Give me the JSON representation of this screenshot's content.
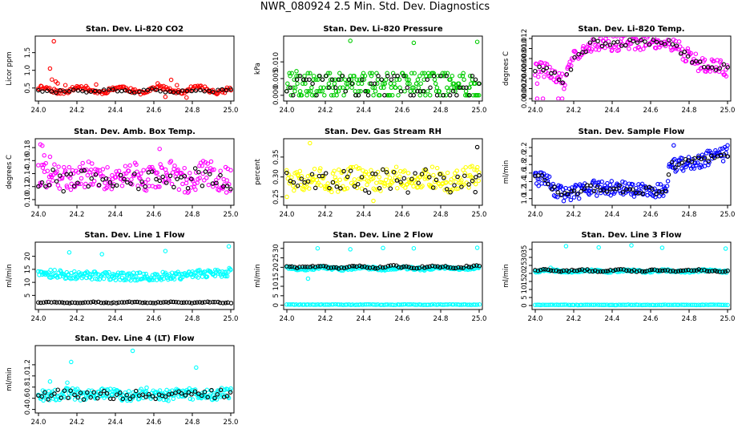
{
  "page_title": "NWR_080924  2.5 Min. Std. Dev. Diagnostics",
  "chart_data": [
    {
      "id": "co2",
      "type": "scatter",
      "title": "Stan. Dev. Li-820 CO2",
      "ylabel": "Licor ppm",
      "color": "#ff0000",
      "xlim": [
        24.0,
        25.0
      ],
      "xticks": [
        24.0,
        24.2,
        24.4,
        24.6,
        24.8,
        25.0
      ],
      "ylim": [
        0.2,
        1.9
      ],
      "yticks": [
        0.5,
        1.0,
        1.5
      ],
      "series": [
        {
          "name": "primary",
          "color": "#ff0000",
          "gen": {
            "kind": "noise",
            "n": 170,
            "base": 0.45,
            "amp": 0.07,
            "jitter": 0.06,
            "seed": 11
          },
          "extra": [
            [
              24.08,
              1.82
            ],
            [
              24.06,
              1.05
            ],
            [
              24.07,
              0.74
            ],
            [
              24.09,
              0.68
            ],
            [
              24.1,
              0.63
            ],
            [
              24.14,
              0.58
            ],
            [
              24.2,
              0.55
            ],
            [
              24.3,
              0.6
            ],
            [
              24.62,
              0.63
            ],
            [
              24.69,
              0.73
            ],
            [
              24.72,
              0.58
            ],
            [
              24.66,
              0.25
            ],
            [
              24.77,
              0.23
            ]
          ]
        },
        {
          "name": "secondary",
          "color": "#000000",
          "gen": {
            "kind": "noise",
            "n": 45,
            "base": 0.42,
            "amp": 0.03,
            "jitter": 0.04,
            "seed": 12
          }
        }
      ]
    },
    {
      "id": "pressure",
      "type": "scatter",
      "title": "Stan. Dev. Li-820 Pressure",
      "ylabel": "kPa",
      "color": "#00cc00",
      "xlim": [
        24.0,
        25.0
      ],
      "xticks": [
        24.0,
        24.2,
        24.4,
        24.6,
        24.8,
        25.0
      ],
      "ylim": [
        -0.001,
        0.017
      ],
      "yticks": [
        0.0,
        0.005,
        0.01
      ],
      "series": [
        {
          "name": "primary",
          "color": "#00cc00",
          "gen": {
            "kind": "levels",
            "n": 220,
            "levels": [
              0,
              0.0012,
              0.0023,
              0.0035,
              0.0047,
              0.0058,
              0.0066
            ],
            "seed": 21
          },
          "extra": [
            [
              24.33,
              0.0163
            ],
            [
              24.66,
              0.0157
            ],
            [
              24.99,
              0.016
            ],
            [
              24.05,
              0.0072
            ]
          ]
        },
        {
          "name": "secondary",
          "color": "#000000",
          "gen": {
            "kind": "levels",
            "n": 60,
            "levels": [
              0,
              0.0012,
              0.0023,
              0.0035,
              0.0047,
              0.0058
            ],
            "seed": 22
          }
        }
      ]
    },
    {
      "id": "temp",
      "type": "scatter",
      "title": "Stan. Dev. Li-820 Temp.",
      "ylabel": "degrees C",
      "color": "#ff00ff",
      "xlim": [
        24.0,
        25.0
      ],
      "xticks": [
        24.0,
        24.2,
        24.4,
        24.6,
        24.8,
        25.0
      ],
      "ylim": [
        0.0,
        0.012
      ],
      "yticks": [
        0.0,
        0.002,
        0.004,
        0.006,
        0.008,
        0.01,
        0.012
      ],
      "series": [
        {
          "name": "primary",
          "color": "#ff00ff",
          "gen": {
            "kind": "curve",
            "n": 200,
            "pts": [
              [
                24.0,
                0.006
              ],
              [
                24.1,
                0.005
              ],
              [
                24.15,
                0.003
              ],
              [
                24.2,
                0.008
              ],
              [
                24.3,
                0.011
              ],
              [
                24.5,
                0.0112
              ],
              [
                24.7,
                0.0115
              ],
              [
                24.78,
                0.009
              ],
              [
                24.85,
                0.007
              ],
              [
                25.0,
                0.006
              ]
            ],
            "jitter": 0.0016,
            "seed": 31
          },
          "extra": [
            [
              24.01,
              0.0
            ],
            [
              24.04,
              0.0
            ],
            [
              24.12,
              0.0
            ],
            [
              24.14,
              0.0
            ],
            [
              24.01,
              0.003
            ]
          ]
        },
        {
          "name": "secondary",
          "color": "#000000",
          "gen": {
            "kind": "curve",
            "n": 50,
            "pts": [
              [
                24.0,
                0.006
              ],
              [
                24.1,
                0.005
              ],
              [
                24.15,
                0.003
              ],
              [
                24.2,
                0.008
              ],
              [
                24.3,
                0.011
              ],
              [
                24.5,
                0.0112
              ],
              [
                24.7,
                0.0115
              ],
              [
                24.78,
                0.009
              ],
              [
                24.85,
                0.007
              ],
              [
                25.0,
                0.006
              ]
            ],
            "jitter": 0.0008,
            "seed": 32
          }
        }
      ]
    },
    {
      "id": "boxtemp",
      "type": "scatter",
      "title": "Stan. Dev. Amb. Box Temp.",
      "ylabel": "degrees C",
      "color": "#ff00ff",
      "xlim": [
        24.0,
        25.0
      ],
      "xticks": [
        24.0,
        24.2,
        24.4,
        24.6,
        24.8,
        25.0
      ],
      "ylim": [
        0.095,
        0.19
      ],
      "yticks": [
        0.1,
        0.12,
        0.14,
        0.16,
        0.18
      ],
      "series": [
        {
          "name": "primary",
          "color": "#ff00ff",
          "gen": {
            "kind": "noise",
            "n": 220,
            "base": 0.135,
            "amp": 0.005,
            "jitter": 0.02,
            "seed": 41
          },
          "extra": [
            [
              24.01,
              0.185
            ],
            [
              24.02,
              0.183
            ],
            [
              24.03,
              0.168
            ],
            [
              24.63,
              0.178
            ],
            [
              24.06,
              0.166
            ]
          ]
        },
        {
          "name": "secondary",
          "color": "#000000",
          "gen": {
            "kind": "noise",
            "n": 55,
            "base": 0.13,
            "amp": 0.005,
            "jitter": 0.015,
            "seed": 42
          }
        }
      ]
    },
    {
      "id": "rh",
      "type": "scatter",
      "title": "Stan. Dev. Gas Stream RH",
      "ylabel": "percent",
      "color": "#ffff00",
      "xlim": [
        24.0,
        25.0
      ],
      "xticks": [
        24.0,
        24.2,
        24.4,
        24.6,
        24.8,
        25.0
      ],
      "ylim": [
        0.235,
        0.39
      ],
      "yticks": [
        0.25,
        0.3,
        0.35
      ],
      "series": [
        {
          "name": "primary",
          "color": "#ffff00",
          "gen": {
            "kind": "noise",
            "n": 220,
            "base": 0.295,
            "amp": 0.006,
            "jitter": 0.028,
            "seed": 51
          },
          "extra": [
            [
              24.12,
              0.385
            ],
            [
              24.0,
              0.25
            ],
            [
              24.45,
              0.24
            ]
          ]
        },
        {
          "name": "secondary",
          "color": "#000000",
          "gen": {
            "kind": "noise",
            "n": 55,
            "base": 0.29,
            "amp": 0.005,
            "jitter": 0.025,
            "seed": 52
          },
          "extra": [
            [
              24.99,
              0.375
            ],
            [
              24.98,
              0.262
            ]
          ]
        }
      ]
    },
    {
      "id": "sampleflow",
      "type": "scatter",
      "title": "Stan. Dev. Sample Flow",
      "ylabel": "ml/min",
      "color": "#0000ff",
      "xlim": [
        24.0,
        25.0
      ],
      "xticks": [
        24.0,
        24.2,
        24.4,
        24.6,
        24.8,
        25.0
      ],
      "ylim": [
        0.9,
        2.35
      ],
      "yticks": [
        1.0,
        1.2,
        1.4,
        1.6,
        1.8,
        2.0,
        2.2
      ],
      "series": [
        {
          "name": "primary",
          "color": "#0000ff",
          "gen": {
            "kind": "curve",
            "n": 230,
            "pts": [
              [
                24.0,
                1.45
              ],
              [
                24.06,
                1.45
              ],
              [
                24.1,
                1.2
              ],
              [
                24.15,
                1.1
              ],
              [
                24.3,
                1.25
              ],
              [
                24.5,
                1.22
              ],
              [
                24.68,
                1.2
              ],
              [
                24.7,
                1.75
              ],
              [
                24.85,
                1.9
              ],
              [
                25.0,
                2.05
              ]
            ],
            "jitter": 0.18,
            "seed": 61
          },
          "extra": [
            [
              24.72,
              2.25
            ],
            [
              24.0,
              1.6
            ],
            [
              25.0,
              2.25
            ]
          ]
        },
        {
          "name": "secondary",
          "color": "#000000",
          "gen": {
            "kind": "curve",
            "n": 60,
            "pts": [
              [
                24.0,
                1.45
              ],
              [
                24.06,
                1.45
              ],
              [
                24.1,
                1.2
              ],
              [
                24.15,
                1.1
              ],
              [
                24.3,
                1.25
              ],
              [
                24.5,
                1.22
              ],
              [
                24.68,
                1.2
              ],
              [
                24.7,
                1.75
              ],
              [
                24.85,
                1.9
              ],
              [
                25.0,
                2.05
              ]
            ],
            "jitter": 0.1,
            "seed": 62
          }
        }
      ]
    },
    {
      "id": "line1",
      "type": "scatter",
      "title": "Stan. Dev. Line 1 Flow",
      "ylabel": "ml/min",
      "color": "#00ffff",
      "xlim": [
        24.0,
        25.0
      ],
      "xticks": [
        24.0,
        24.2,
        24.4,
        24.6,
        24.8,
        25.0
      ],
      "ylim": [
        0.5,
        24.5
      ],
      "yticks": [
        5,
        10,
        15,
        20
      ],
      "series": [
        {
          "name": "primary",
          "color": "#00ffff",
          "gen": {
            "kind": "curve",
            "n": 230,
            "pts": [
              [
                24.0,
                13.5
              ],
              [
                24.3,
                12.5
              ],
              [
                24.6,
                12.2
              ],
              [
                24.8,
                13.0
              ],
              [
                25.0,
                14.0
              ]
            ],
            "jitter": 1.6,
            "seed": 71
          },
          "extra": [
            [
              24.16,
              21.5
            ],
            [
              24.33,
              20.8
            ],
            [
              24.66,
              22.0
            ],
            [
              24.99,
              23.8
            ]
          ]
        },
        {
          "name": "secondary",
          "color": "#000000",
          "gen": {
            "kind": "noise",
            "n": 75,
            "base": 2.3,
            "amp": 0.15,
            "jitter": 0.15,
            "seed": 72
          }
        }
      ]
    },
    {
      "id": "line2",
      "type": "scatter",
      "title": "Stan. Dev. Line 2 Flow",
      "ylabel": "ml/min",
      "color": "#00ffff",
      "xlim": [
        24.0,
        25.0
      ],
      "xticks": [
        24.0,
        24.2,
        24.4,
        24.6,
        24.8,
        25.0
      ],
      "ylim": [
        -1,
        32
      ],
      "yticks": [
        0,
        5,
        10,
        15,
        20,
        25,
        30
      ],
      "series": [
        {
          "name": "baseline",
          "color": "#00ffff",
          "gen": {
            "kind": "noise",
            "n": 100,
            "base": 0.3,
            "amp": 0.05,
            "jitter": 0.1,
            "seed": 80
          }
        },
        {
          "name": "primary",
          "color": "#00ffff",
          "gen": {
            "kind": "noise",
            "n": 220,
            "base": 19.5,
            "amp": 0.4,
            "jitter": 0.8,
            "seed": 81
          },
          "extra": [
            [
              24.16,
              30.0
            ],
            [
              24.33,
              29.5
            ],
            [
              24.5,
              30.2
            ],
            [
              24.66,
              30.0
            ],
            [
              24.99,
              30.3
            ],
            [
              24.11,
              14.0
            ]
          ]
        },
        {
          "name": "secondary",
          "color": "#000000",
          "gen": {
            "kind": "noise",
            "n": 75,
            "base": 20.2,
            "amp": 0.4,
            "jitter": 0.5,
            "seed": 82
          }
        }
      ]
    },
    {
      "id": "line3",
      "type": "scatter",
      "title": "Stan. Dev. Line 3 Flow",
      "ylabel": "ml/min",
      "color": "#00ffff",
      "xlim": [
        24.0,
        25.0
      ],
      "xticks": [
        24.0,
        24.2,
        24.4,
        24.6,
        24.8,
        25.0
      ],
      "ylim": [
        -1,
        38
      ],
      "yticks": [
        0,
        5,
        10,
        15,
        20,
        25,
        30,
        35
      ],
      "series": [
        {
          "name": "baseline",
          "color": "#00ffff",
          "gen": {
            "kind": "noise",
            "n": 100,
            "base": 0.4,
            "amp": 0.05,
            "jitter": 0.1,
            "seed": 90
          }
        },
        {
          "name": "primary",
          "color": "#00ffff",
          "gen": {
            "kind": "noise",
            "n": 200,
            "base": 21.5,
            "amp": 0.4,
            "jitter": 0.7,
            "seed": 91
          },
          "extra": [
            [
              24.16,
              37.0
            ],
            [
              24.33,
              36.2
            ],
            [
              24.5,
              37.5
            ],
            [
              24.66,
              36.0
            ],
            [
              24.99,
              35.5
            ],
            [
              24.08,
              23.5
            ]
          ]
        },
        {
          "name": "secondary",
          "color": "#000000",
          "gen": {
            "kind": "noise",
            "n": 75,
            "base": 21.8,
            "amp": 0.4,
            "jitter": 0.5,
            "seed": 92
          }
        }
      ]
    },
    {
      "id": "line4",
      "type": "scatter",
      "title": "Stan. Dev. Line 4 (LT) Flow",
      "ylabel": "ml/min",
      "color": "#00ffff",
      "xlim": [
        24.0,
        25.0
      ],
      "xticks": [
        24.0,
        24.2,
        24.4,
        24.6,
        24.8,
        25.0
      ],
      "ylim": [
        0.38,
        1.5
      ],
      "yticks": [
        0.4,
        0.6,
        0.8,
        1.0,
        1.2
      ],
      "series": [
        {
          "name": "primary",
          "color": "#00ffff",
          "gen": {
            "kind": "noise",
            "n": 230,
            "base": 0.67,
            "amp": 0.02,
            "jitter": 0.1,
            "seed": 101
          },
          "extra": [
            [
              24.17,
              1.25
            ],
            [
              24.49,
              1.45
            ],
            [
              24.82,
              1.15
            ],
            [
              24.06,
              0.9
            ],
            [
              24.15,
              0.88
            ]
          ]
        },
        {
          "name": "secondary",
          "color": "#000000",
          "gen": {
            "kind": "noise",
            "n": 60,
            "base": 0.66,
            "amp": 0.02,
            "jitter": 0.08,
            "seed": 102
          }
        }
      ]
    }
  ]
}
